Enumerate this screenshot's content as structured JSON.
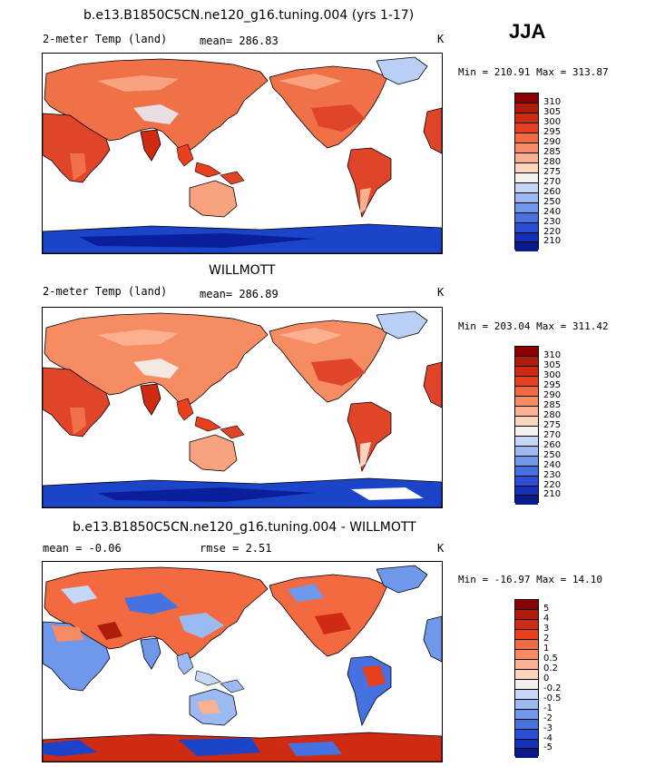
{
  "season": "JJA",
  "panels": [
    {
      "title": "b.e13.B1850C5CN.ne120_g16.tuning.004 (yrs 1-17)",
      "variable": "2-meter Temp (land)",
      "stat": "mean= 286.83",
      "units": "K",
      "minmax": "Min = 210.91 Max = 313.87",
      "colorbar": [
        "310",
        "305",
        "300",
        "295",
        "290",
        "285",
        "280",
        "275",
        "270",
        "260",
        "250",
        "240",
        "230",
        "220",
        "210"
      ]
    },
    {
      "title": "WILLMOTT",
      "variable": "2-meter Temp (land)",
      "stat": "mean= 286.89",
      "units": "K",
      "minmax": "Min = 203.04 Max = 311.42",
      "colorbar": [
        "310",
        "305",
        "300",
        "295",
        "290",
        "285",
        "280",
        "275",
        "270",
        "260",
        "250",
        "240",
        "230",
        "220",
        "210"
      ]
    },
    {
      "title": "b.e13.B1850C5CN.ne120_g16.tuning.004 - WILLMOTT",
      "variable": "mean =   -0.06",
      "stat": "rmse =    2.51",
      "units": "K",
      "minmax": "Min = -16.97 Max =  14.10",
      "colorbar": [
        "5",
        "4",
        "3",
        "2",
        "1",
        "0.5",
        "0.2",
        "0",
        "-0.2",
        "-0.5",
        "-1",
        "-2",
        "-3",
        "-4",
        "-5"
      ]
    }
  ],
  "colors": {
    "scale": [
      "#8b0000",
      "#b01c0c",
      "#cf2a12",
      "#e83f1c",
      "#f36a40",
      "#f78c62",
      "#fbb090",
      "#fdd4bc",
      "#f4f0ee",
      "#c6d6f6",
      "#9cbaf2",
      "#6f98ea",
      "#4572e0",
      "#2a4fd6",
      "#1530b8",
      "#091a8c"
    ],
    "warm_land": "#f07148",
    "hot_land": "#e0452a",
    "mild_land": "#f8a280",
    "ice": "#1c44c8",
    "ice_dark": "#0b1f9c",
    "greenland": "#b9cff6"
  }
}
